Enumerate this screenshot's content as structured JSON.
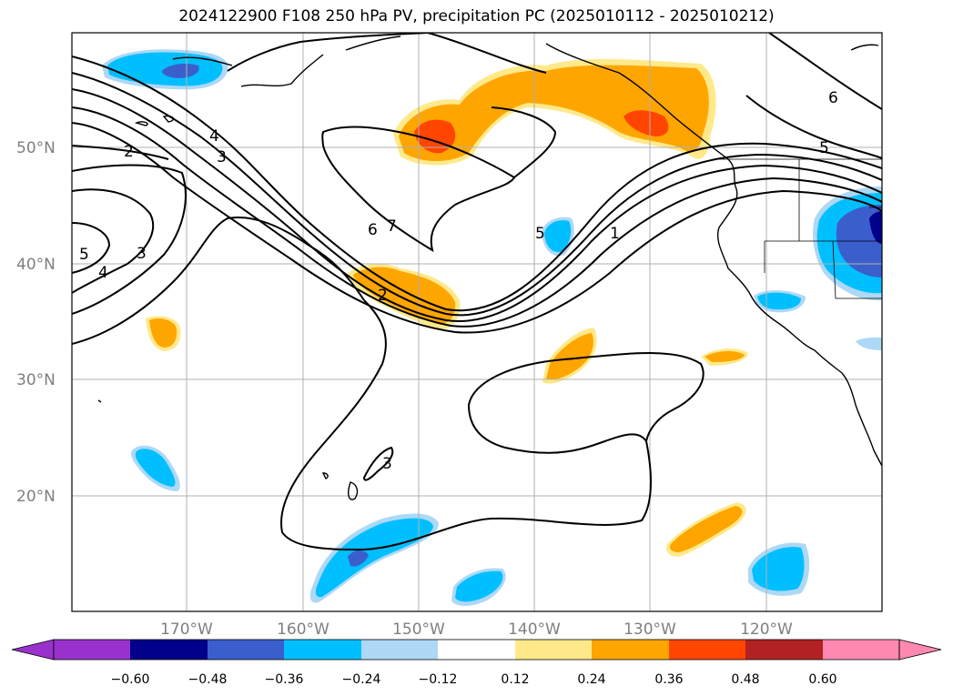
{
  "title": "2024122900 F108 250 hPa PV, precipitation PC (2025010112 - 2025010212)",
  "lat_labels": [
    "50°N",
    "40°N",
    "30°N",
    "20°N"
  ],
  "lon_labels": [
    "170°W",
    "160°W",
    "150°W",
    "140°W",
    "130°W",
    "120°W"
  ],
  "colorbar": {
    "ticks": [
      "−0.60",
      "−0.48",
      "−0.36",
      "−0.24",
      "−0.12",
      "0.12",
      "0.24",
      "0.36",
      "0.48",
      "0.60"
    ],
    "colors": [
      "#9932cc",
      "#00008b",
      "#3a5fcd",
      "#00bfff",
      "#add8f6",
      "#ffffff",
      "#ffe98a",
      "#ffa500",
      "#ff4500",
      "#b22222",
      "#ff88b0"
    ]
  },
  "contour_labels": [
    "2",
    "4",
    "3",
    "5",
    "4",
    "3",
    "6",
    "7",
    "2",
    "5",
    "1",
    "3",
    "6",
    "5"
  ],
  "chart_data": {
    "type": "map",
    "title": "2024122900 F108 250 hPa PV, precipitation PC (2025010112 - 2025010212)",
    "fields": [
      "250 hPa PV contours",
      "precipitation PC shading"
    ],
    "lon_range": [
      "180°W",
      "110°W"
    ],
    "lat_range": [
      "10°N",
      "60°N"
    ],
    "contour_levels_labeled": [
      1,
      2,
      3,
      4,
      5,
      6,
      7
    ],
    "colorbar_levels": [
      -0.6,
      -0.48,
      -0.36,
      -0.24,
      -0.12,
      0.12,
      0.24,
      0.36,
      0.48,
      0.6
    ]
  }
}
